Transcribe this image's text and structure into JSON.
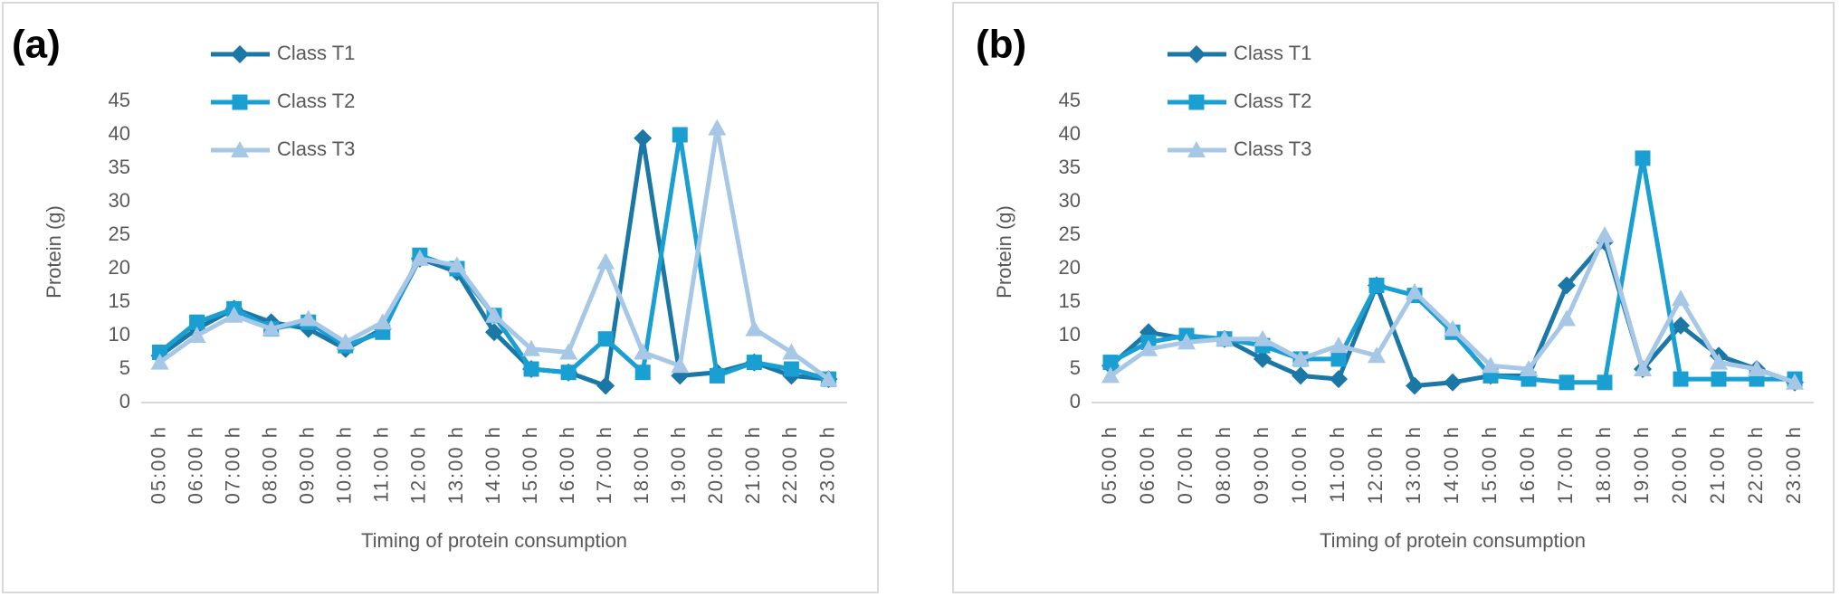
{
  "chart_data": [
    {
      "type": "line",
      "panel_label": "(a)",
      "y_label": "Protein (g)",
      "x_label": "Timing of protein consumption",
      "categories": [
        "05:00 h",
        "06:00 h",
        "07:00 h",
        "08:00 h",
        "09:00 h",
        "10:00 h",
        "11:00 h",
        "12:00 h",
        "13:00 h",
        "14:00 h",
        "15:00 h",
        "16:00 h",
        "17:00 h",
        "18:00 h",
        "19:00 h",
        "20:00 h",
        "21:00 h",
        "22:00 h",
        "23:00 h"
      ],
      "ylim": [
        0,
        45
      ],
      "yticks": [
        0,
        5,
        10,
        15,
        20,
        25,
        30,
        35,
        40,
        45
      ],
      "series": [
        {
          "name": "Class T1",
          "color": "#1b77a6",
          "marker": "diamond",
          "values": [
            7,
            11,
            14,
            12,
            11,
            8,
            11,
            21.5,
            19.5,
            10.5,
            5,
            4.5,
            2.5,
            39.5,
            4,
            4.5,
            6,
            4,
            3.5
          ]
        },
        {
          "name": "Class T2",
          "color": "#1a9fd3",
          "marker": "square",
          "values": [
            7.5,
            12,
            14,
            11,
            12,
            8.5,
            10.5,
            22,
            20,
            13,
            5,
            4.5,
            9.5,
            4.5,
            40,
            4,
            6,
            5,
            3.5
          ]
        },
        {
          "name": "Class T3",
          "color": "#a6c8e6",
          "marker": "triangle",
          "values": [
            6,
            10,
            13,
            11,
            12.5,
            9,
            12,
            21.5,
            20.5,
            13,
            8,
            7.5,
            21,
            7.5,
            5.5,
            41,
            11,
            7.5,
            3.5
          ]
        }
      ]
    },
    {
      "type": "line",
      "panel_label": "(b)",
      "y_label": "Protein (g)",
      "x_label": "Timing of protein consumption",
      "categories": [
        "05:00 h",
        "06:00 h",
        "07:00 h",
        "08:00 h",
        "09:00 h",
        "10:00 h",
        "11:00 h",
        "12:00 h",
        "13:00 h",
        "14:00 h",
        "15:00 h",
        "16:00 h",
        "17:00 h",
        "18:00 h",
        "19:00 h",
        "20:00 h",
        "21:00 h",
        "22:00 h",
        "23:00 h"
      ],
      "ylim": [
        0,
        45
      ],
      "yticks": [
        0,
        5,
        10,
        15,
        20,
        25,
        30,
        35,
        40,
        45
      ],
      "series": [
        {
          "name": "Class T1",
          "color": "#1b77a6",
          "marker": "diamond",
          "values": [
            5.5,
            10.5,
            9.5,
            9.5,
            6.5,
            4,
            3.5,
            17.5,
            2.5,
            3,
            4,
            4,
            17.5,
            24,
            5,
            11.5,
            7,
            5,
            3
          ]
        },
        {
          "name": "Class T2",
          "color": "#1a9fd3",
          "marker": "square",
          "values": [
            6,
            9,
            10,
            9.5,
            8.5,
            6.5,
            6.5,
            17.5,
            16,
            10.5,
            4,
            3.5,
            3,
            3,
            36.5,
            3.5,
            3.5,
            3.5,
            3.5
          ]
        },
        {
          "name": "Class T3",
          "color": "#a6c8e6",
          "marker": "triangle",
          "values": [
            4,
            8,
            9,
            9.5,
            9.5,
            6.5,
            8.5,
            7,
            16.5,
            11,
            5.5,
            5,
            12.5,
            25,
            5,
            15.5,
            6,
            5,
            3
          ]
        }
      ]
    }
  ]
}
